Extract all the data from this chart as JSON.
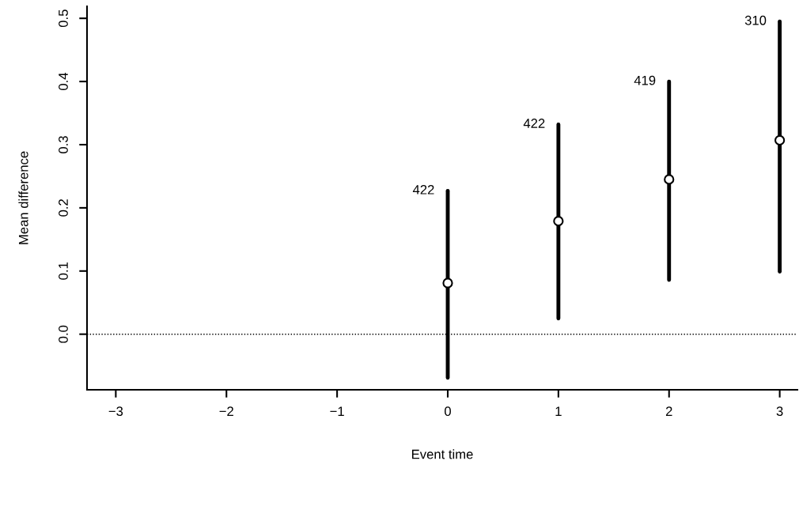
{
  "chart_data": {
    "type": "scatter",
    "xlabel": "Event time",
    "ylabel": "Mean difference",
    "x": [
      0,
      1,
      2,
      3
    ],
    "series": [
      {
        "color": "#000000",
        "values": [
          0.081,
          0.179,
          0.245,
          0.307
        ],
        "errors": [
          [
            -0.069,
            0.227
          ],
          [
            0.025,
            0.332
          ],
          [
            0.086,
            0.4
          ],
          [
            0.099,
            0.495
          ]
        ]
      }
    ],
    "annotations": [
      {
        "text": "422",
        "x": 0,
        "y": 0.227
      },
      {
        "text": "422",
        "x": 1,
        "y": 0.332
      },
      {
        "text": "419",
        "x": 2,
        "y": 0.4
      },
      {
        "text": "310",
        "x": 3,
        "y": 0.495
      }
    ],
    "xlim": [
      -3.26,
      3.16
    ],
    "ylim": [
      -0.088,
      0.519
    ],
    "xticks": [
      {
        "value": -3,
        "label": "−3"
      },
      {
        "value": -2,
        "label": "−2"
      },
      {
        "value": -1,
        "label": "−1"
      },
      0,
      1,
      2,
      3
    ],
    "yticks": [
      {
        "value": 0,
        "label": "0.0"
      },
      0.1,
      0.2,
      0.3,
      0.4,
      0.5
    ],
    "ref_lines": [
      {
        "axis": "y",
        "value": 0,
        "color": "#000000",
        "line_style": "dotted"
      }
    ],
    "marker": "circle",
    "grid": false,
    "legend": false
  }
}
